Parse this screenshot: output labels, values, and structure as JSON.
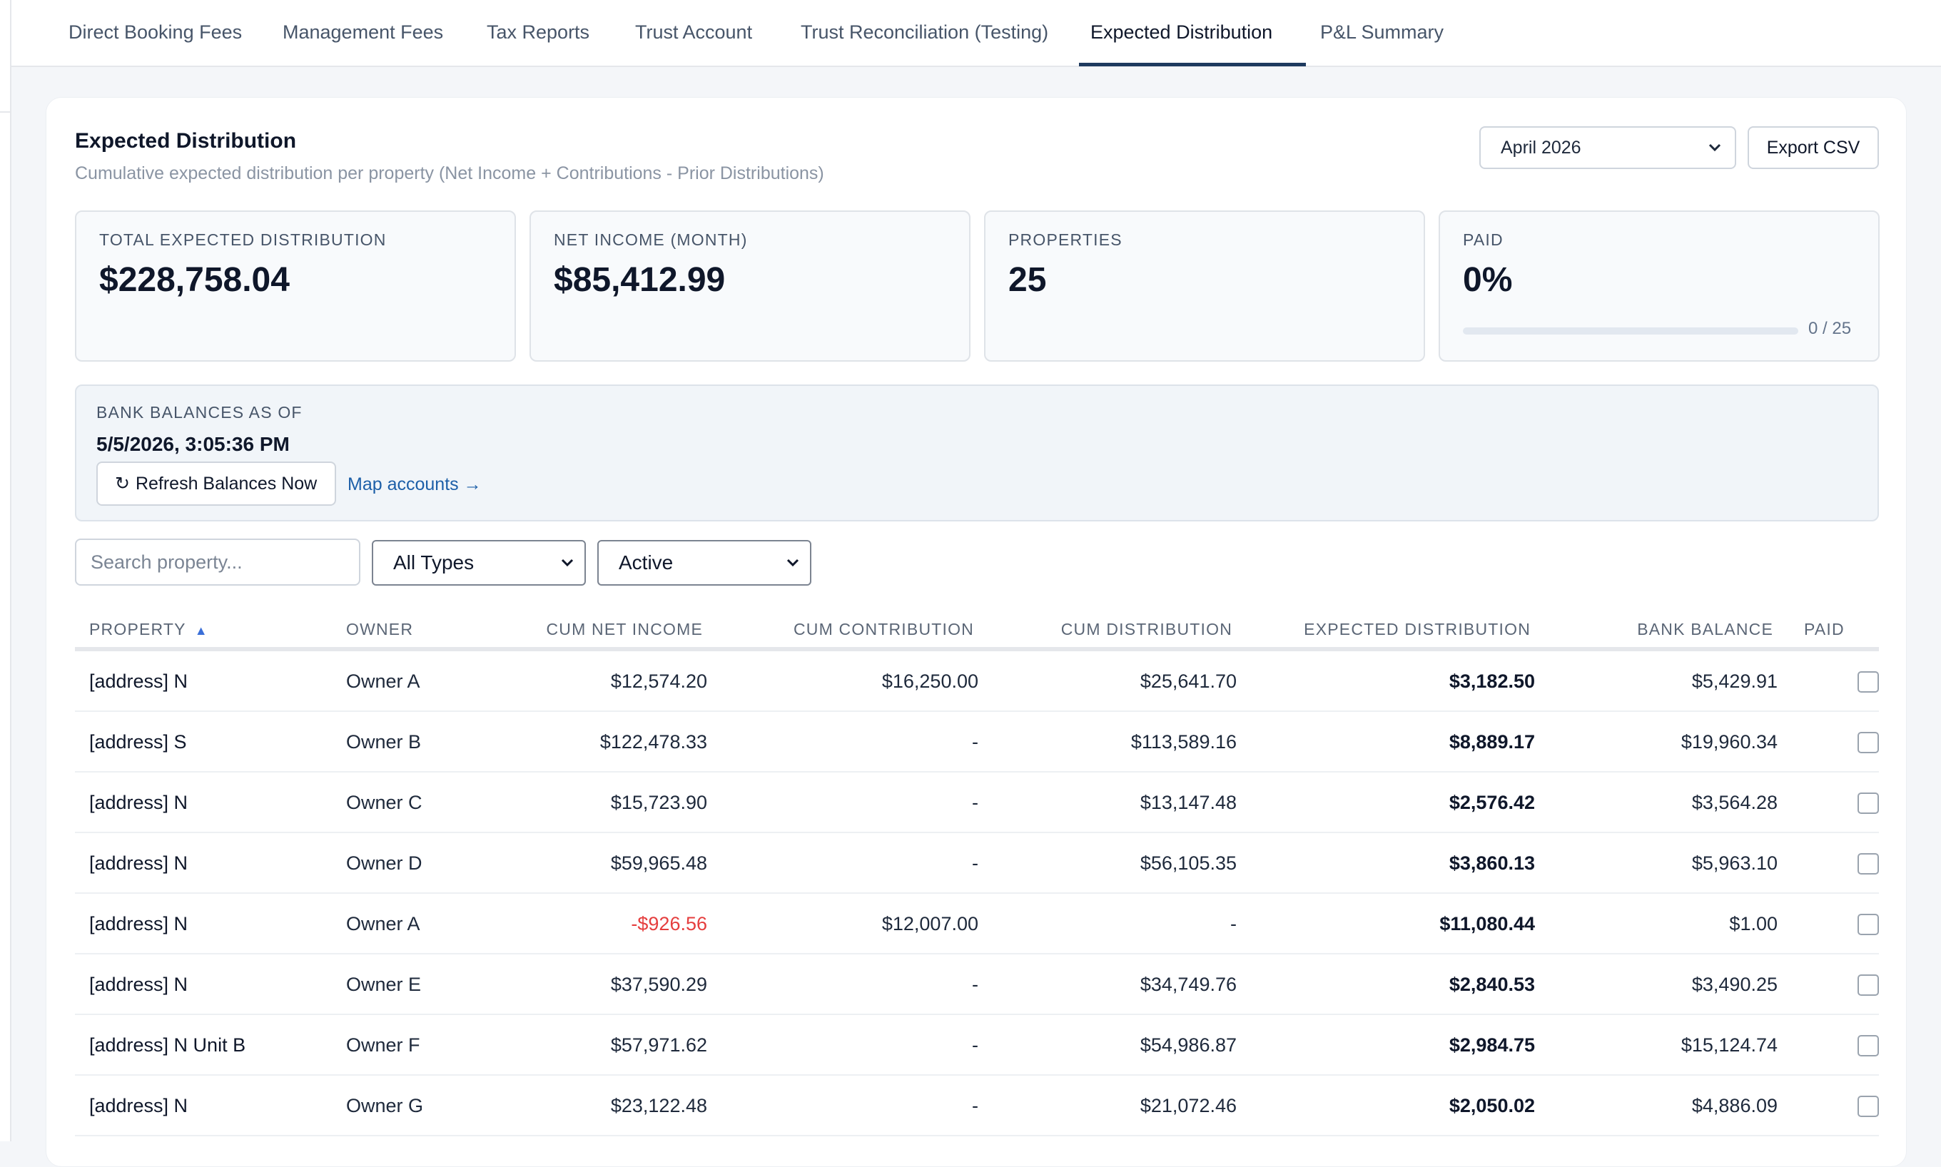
{
  "tabs": [
    {
      "label": "Direct Booking Fees"
    },
    {
      "label": "Management Fees"
    },
    {
      "label": "Tax Reports"
    },
    {
      "label": "Trust Account"
    },
    {
      "label": "Trust Reconciliation (Testing)"
    },
    {
      "label": "Expected Distribution",
      "active": true
    },
    {
      "label": "P&L Summary"
    }
  ],
  "header": {
    "title": "Expected Distribution",
    "subtitle": "Cumulative expected distribution per property (Net Income + Contributions - Prior Distributions)",
    "month_selected": "April 2026",
    "export_label": "Export CSV"
  },
  "stats": [
    {
      "label": "TOTAL EXPECTED DISTRIBUTION",
      "value": "$228,758.04"
    },
    {
      "label": "NET INCOME (MONTH)",
      "value": "$85,412.99"
    },
    {
      "label": "PROPERTIES",
      "value": "25"
    },
    {
      "label": "PAID",
      "value": "0%",
      "progress_fraction": 0,
      "progress_text": "0 / 25"
    }
  ],
  "bank": {
    "label": "BANK BALANCES AS OF",
    "timestamp": "5/5/2026, 3:05:36 PM",
    "refresh_icon": "↻",
    "refresh_label": "Refresh Balances Now",
    "map_link": "Map accounts →"
  },
  "filters": {
    "search_placeholder": "Search property...",
    "type_selected": "All Types",
    "status_selected": "Active"
  },
  "table": {
    "columns": {
      "property": "PROPERTY",
      "owner": "OWNER",
      "cum_net_income": "CUM NET INCOME",
      "cum_contribution": "CUM CONTRIBUTION",
      "cum_distribution": "CUM DISTRIBUTION",
      "expected_distribution": "EXPECTED DISTRIBUTION",
      "bank_balance": "BANK BALANCE",
      "paid": "PAID"
    },
    "sort_indicator": "▲",
    "rows": [
      {
        "property": "[address] N",
        "owner": "Owner A",
        "cum_net_income": "$12,574.20",
        "cum_contribution": "$16,250.00",
        "cum_distribution": "$25,641.70",
        "expected_distribution": "$3,182.50",
        "bank_balance": "$5,429.91",
        "paid": false
      },
      {
        "property": "[address] S",
        "owner": "Owner B",
        "cum_net_income": "$122,478.33",
        "cum_contribution": "-",
        "cum_distribution": "$113,589.16",
        "expected_distribution": "$8,889.17",
        "bank_balance": "$19,960.34",
        "paid": false
      },
      {
        "property": "[address] N",
        "owner": "Owner C",
        "cum_net_income": "$15,723.90",
        "cum_contribution": "-",
        "cum_distribution": "$13,147.48",
        "expected_distribution": "$2,576.42",
        "bank_balance": "$3,564.28",
        "paid": false
      },
      {
        "property": "[address] N",
        "owner": "Owner D",
        "cum_net_income": "$59,965.48",
        "cum_contribution": "-",
        "cum_distribution": "$56,105.35",
        "expected_distribution": "$3,860.13",
        "bank_balance": "$5,963.10",
        "paid": false
      },
      {
        "property": "[address] N",
        "owner": "Owner A",
        "cum_net_income": "-$926.56",
        "negative": true,
        "cum_contribution": "$12,007.00",
        "cum_distribution": "-",
        "expected_distribution": "$11,080.44",
        "bank_balance": "$1.00",
        "paid": false
      },
      {
        "property": "[address] N",
        "owner": "Owner E",
        "cum_net_income": "$37,590.29",
        "cum_contribution": "-",
        "cum_distribution": "$34,749.76",
        "expected_distribution": "$2,840.53",
        "bank_balance": "$3,490.25",
        "paid": false
      },
      {
        "property": "[address] N Unit B",
        "owner": "Owner F",
        "cum_net_income": "$57,971.62",
        "cum_contribution": "-",
        "cum_distribution": "$54,986.87",
        "expected_distribution": "$2,984.75",
        "bank_balance": "$15,124.74",
        "paid": false
      },
      {
        "property": "[address] N",
        "owner": "Owner G",
        "cum_net_income": "$23,122.48",
        "cum_contribution": "-",
        "cum_distribution": "$21,072.46",
        "expected_distribution": "$2,050.02",
        "bank_balance": "$4,886.09",
        "paid": false
      }
    ]
  },
  "colors": {
    "accent": "#1e3a5f",
    "link": "#1d5fa8",
    "negative": "#e53e3e",
    "progress": "#3b82f6"
  }
}
